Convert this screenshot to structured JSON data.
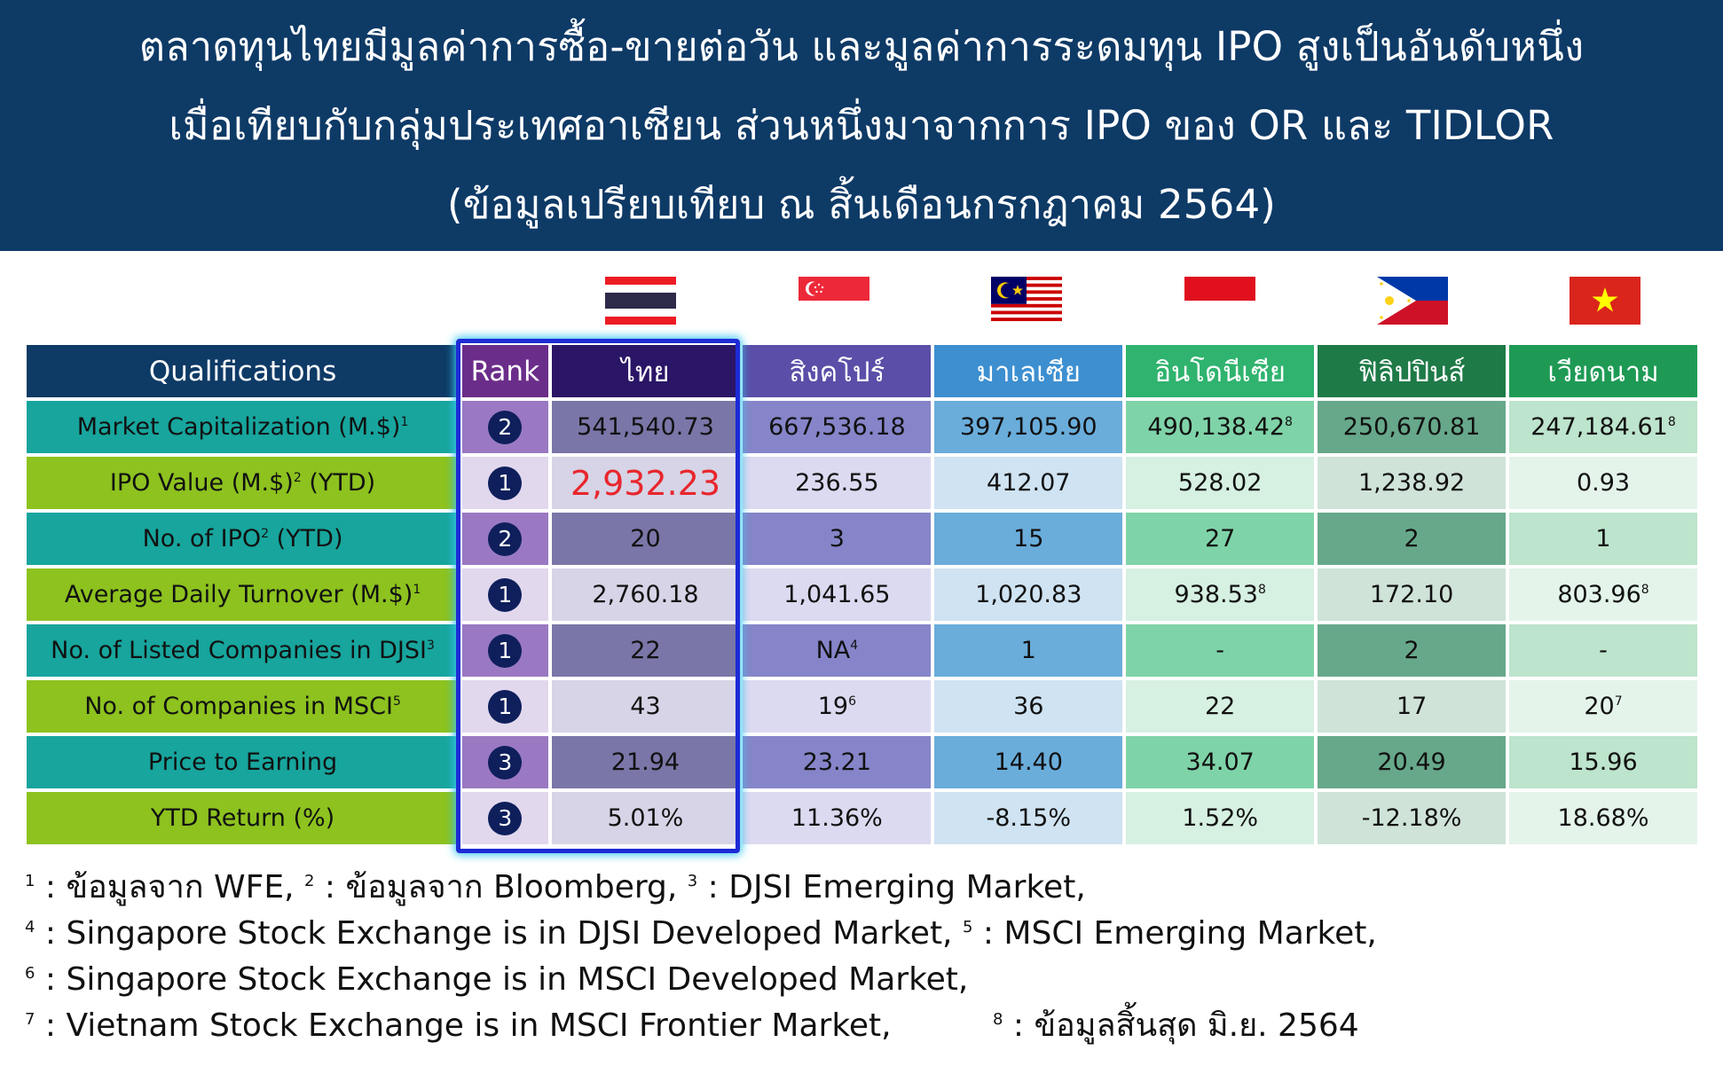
{
  "header": {
    "line1": "ตลาดทุนไทยมีมูลค่าการซื้อ-ขายต่อวัน และมูลค่าการระดมทุน IPO สูงเป็นอันดับหนึ่ง",
    "line2": "เมื่อเทียบกับกลุ่มประเทศอาเซียน ส่วนหนึ่งมาจากการ IPO ของ OR และ TIDLOR",
    "line3": "(ข้อมูลเปรียบเทียบ ณ สิ้นเดือนกรกฎาคม 2564)"
  },
  "flags": [
    "thailand-flag-icon",
    "singapore-flag-icon",
    "malaysia-flag-icon",
    "indonesia-flag-icon",
    "philippines-flag-icon",
    "vietnam-flag-icon"
  ],
  "colors": {
    "header_bg": "#0e3a66",
    "teal_row": "#17a59d",
    "lime_row": "#8dc21f",
    "highlight": "#e8262d",
    "focus_border": "#1d2bd6"
  },
  "chart_data": {
    "type": "table",
    "columns": {
      "qualifications": "Qualifications",
      "rank": "Rank",
      "countries": [
        "ไทย",
        "สิงคโปร์",
        "มาเลเซีย",
        "อินโดนีเซีย",
        "ฟิลิปปินส์",
        "เวียดนาม"
      ]
    },
    "rows": [
      {
        "label": "Market Capitalization (M.$)",
        "label_sup": "1",
        "rank": "2",
        "values": [
          {
            "v": "541,540.73",
            "sup": ""
          },
          {
            "v": "667,536.18",
            "sup": ""
          },
          {
            "v": "397,105.90",
            "sup": ""
          },
          {
            "v": "490,138.42",
            "sup": "8"
          },
          {
            "v": "250,670.81",
            "sup": ""
          },
          {
            "v": "247,184.61",
            "sup": "8"
          }
        ]
      },
      {
        "label": "IPO Value (M.$)",
        "label_sup": "2",
        "label_suffix": " (YTD)",
        "rank": "1",
        "values": [
          {
            "v": "2,932.23",
            "sup": "",
            "highlight": true
          },
          {
            "v": "236.55",
            "sup": ""
          },
          {
            "v": "412.07",
            "sup": ""
          },
          {
            "v": "528.02",
            "sup": ""
          },
          {
            "v": "1,238.92",
            "sup": ""
          },
          {
            "v": "0.93",
            "sup": ""
          }
        ]
      },
      {
        "label": "No. of IPO",
        "label_sup": "2",
        "label_suffix": " (YTD)",
        "rank": "2",
        "values": [
          {
            "v": "20",
            "sup": ""
          },
          {
            "v": "3",
            "sup": ""
          },
          {
            "v": "15",
            "sup": ""
          },
          {
            "v": "27",
            "sup": ""
          },
          {
            "v": "2",
            "sup": ""
          },
          {
            "v": "1",
            "sup": ""
          }
        ]
      },
      {
        "label": "Average Daily Turnover (M.$)",
        "label_sup": "1",
        "rank": "1",
        "values": [
          {
            "v": "2,760.18",
            "sup": ""
          },
          {
            "v": "1,041.65",
            "sup": ""
          },
          {
            "v": "1,020.83",
            "sup": ""
          },
          {
            "v": "938.53",
            "sup": "8"
          },
          {
            "v": "172.10",
            "sup": ""
          },
          {
            "v": "803.96",
            "sup": "8"
          }
        ]
      },
      {
        "label": "No. of Listed Companies in DJSI",
        "label_sup": "3",
        "rank": "1",
        "values": [
          {
            "v": "22",
            "sup": ""
          },
          {
            "v": "NA",
            "sup": "4"
          },
          {
            "v": "1",
            "sup": ""
          },
          {
            "v": "-",
            "sup": ""
          },
          {
            "v": "2",
            "sup": ""
          },
          {
            "v": "-",
            "sup": ""
          }
        ]
      },
      {
        "label": "No. of Companies in MSCI",
        "label_sup": "5",
        "rank": "1",
        "values": [
          {
            "v": "43",
            "sup": ""
          },
          {
            "v": "19",
            "sup": "6"
          },
          {
            "v": "36",
            "sup": ""
          },
          {
            "v": "22",
            "sup": ""
          },
          {
            "v": "17",
            "sup": ""
          },
          {
            "v": "20",
            "sup": "7"
          }
        ]
      },
      {
        "label": "Price to Earning",
        "label_sup": "",
        "rank": "3",
        "values": [
          {
            "v": "21.94",
            "sup": ""
          },
          {
            "v": "23.21",
            "sup": ""
          },
          {
            "v": "14.40",
            "sup": ""
          },
          {
            "v": "34.07",
            "sup": ""
          },
          {
            "v": "20.49",
            "sup": ""
          },
          {
            "v": "15.96",
            "sup": ""
          }
        ]
      },
      {
        "label": "YTD Return (%)",
        "label_sup": "",
        "rank": "3",
        "values": [
          {
            "v": "5.01%",
            "sup": ""
          },
          {
            "v": "11.36%",
            "sup": ""
          },
          {
            "v": "-8.15%",
            "sup": ""
          },
          {
            "v": "1.52%",
            "sup": ""
          },
          {
            "v": "-12.18%",
            "sup": ""
          },
          {
            "v": "18.68%",
            "sup": ""
          }
        ]
      }
    ]
  },
  "footnotes": [
    [
      {
        "sup": "1",
        "text": " : ข้อมูลจาก WFE, "
      },
      {
        "sup": "2",
        "text": " : ข้อมูลจาก Bloomberg, "
      },
      {
        "sup": "3",
        "text": " : DJSI Emerging Market,"
      }
    ],
    [
      {
        "sup": "4",
        "text": " : Singapore Stock Exchange is in DJSI Developed Market, "
      },
      {
        "sup": "5",
        "text": " : MSCI Emerging Market,"
      }
    ],
    [
      {
        "sup": "6",
        "text": " : Singapore Stock Exchange is in MSCI Developed Market,"
      }
    ],
    [
      {
        "sup": "7",
        "text": " : Vietnam Stock Exchange is in MSCI Frontier Market,          "
      },
      {
        "sup": "8",
        "text": " : ข้อมูลสิ้นสุด มิ.ย. 2564"
      }
    ]
  ]
}
